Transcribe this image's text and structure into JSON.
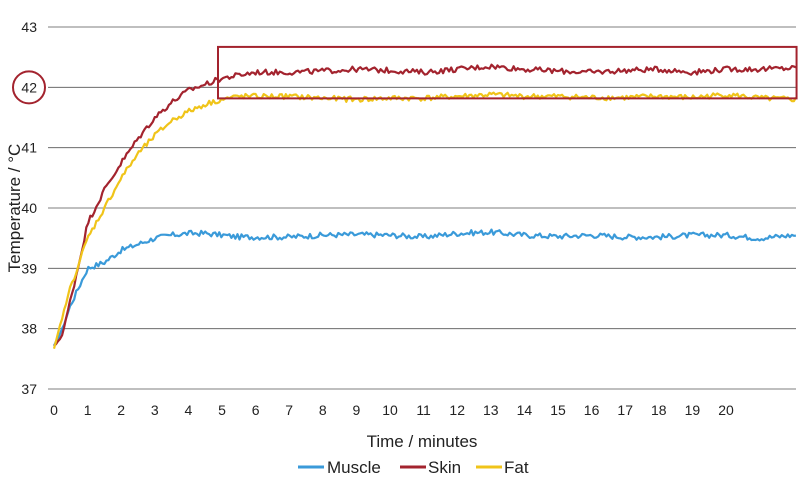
{
  "chart_data": {
    "type": "line",
    "xlabel": "Time / minutes",
    "ylabel": "Temperature / °C",
    "ylim": [
      37,
      43
    ],
    "xlim": [
      0,
      22.1
    ],
    "x_ticks": [
      "0",
      "1",
      "2",
      "3",
      "4",
      "5",
      "6",
      "7",
      "8",
      "9",
      "10",
      "11",
      "12",
      "13",
      "14",
      "15",
      "16",
      "17",
      "18",
      "19",
      "20"
    ],
    "y_ticks": [
      "37",
      "38",
      "39",
      "40",
      "41",
      "42",
      "43"
    ],
    "grid": "horizontal",
    "legend_position": "bottom-center",
    "x": [
      0,
      0.25,
      0.5,
      0.75,
      1,
      1.5,
      2,
      2.5,
      3,
      3.5,
      4,
      4.5,
      5,
      5.5,
      6,
      7,
      8,
      9,
      10,
      11,
      12,
      13,
      14,
      15,
      16,
      17,
      18,
      19,
      20,
      21,
      22
    ],
    "series": [
      {
        "name": "Muscle",
        "color": "#3a9ad9",
        "values": [
          37.7,
          38.0,
          38.4,
          38.7,
          39.0,
          39.1,
          39.3,
          39.4,
          39.5,
          39.55,
          39.58,
          39.58,
          39.55,
          39.52,
          39.52,
          39.52,
          39.55,
          39.56,
          39.55,
          39.52,
          39.58,
          39.6,
          39.55,
          39.53,
          39.55,
          39.52,
          39.52,
          39.55,
          39.55,
          39.5,
          39.55
        ]
      },
      {
        "name": "Skin",
        "color": "#a3232e",
        "values": [
          37.7,
          37.9,
          38.5,
          39.1,
          39.75,
          40.3,
          40.75,
          41.15,
          41.5,
          41.75,
          41.95,
          42.05,
          42.15,
          42.2,
          42.25,
          42.25,
          42.27,
          42.3,
          42.28,
          42.25,
          42.3,
          42.35,
          42.3,
          42.27,
          42.25,
          42.28,
          42.3,
          42.25,
          42.3,
          42.3,
          42.32
        ]
      },
      {
        "name": "Fat",
        "color": "#f0c419",
        "values": [
          37.65,
          38.2,
          38.7,
          39.1,
          39.5,
          40.0,
          40.5,
          40.9,
          41.2,
          41.45,
          41.6,
          41.72,
          41.8,
          41.85,
          41.85,
          41.85,
          41.82,
          41.8,
          41.82,
          41.82,
          41.85,
          41.88,
          41.85,
          41.85,
          41.83,
          41.83,
          41.85,
          41.83,
          41.88,
          41.82,
          41.8
        ]
      }
    ],
    "annotations": [
      {
        "type": "circle",
        "around_tick": "42",
        "color": "#a3232e"
      },
      {
        "type": "rectangle",
        "x_range": [
          5,
          22.1
        ],
        "y_range": [
          41.85,
          42.67
        ],
        "color": "#a3232e"
      }
    ]
  }
}
